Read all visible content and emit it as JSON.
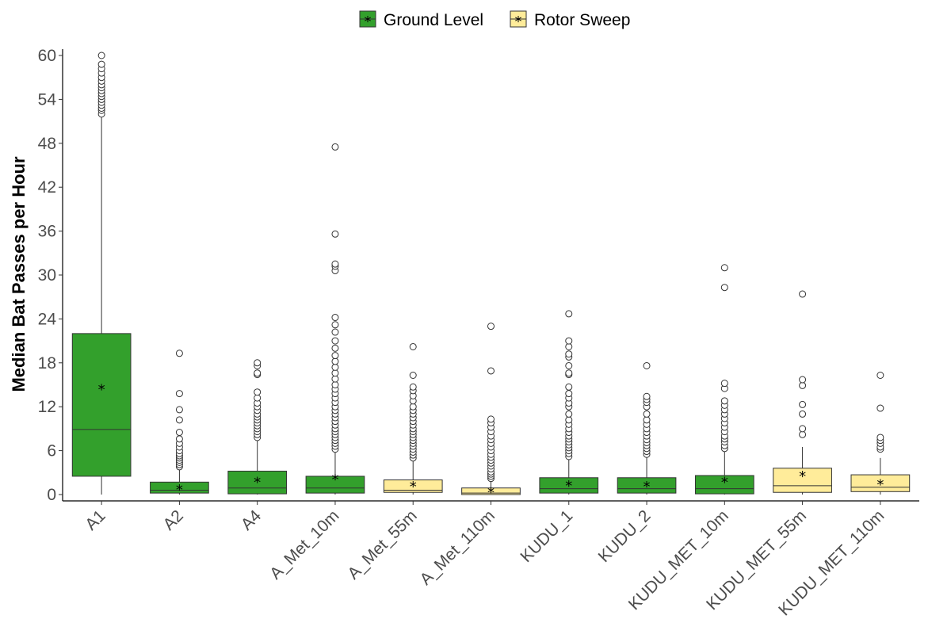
{
  "chart_data": {
    "type": "boxplot",
    "title": "",
    "xlabel": "",
    "ylabel": "Median Bat Passes per Hour",
    "ylim": [
      0,
      61
    ],
    "yticks": [
      0,
      6,
      12,
      18,
      24,
      30,
      36,
      42,
      48,
      54,
      60
    ],
    "grid": false,
    "legend_position": "top",
    "categories": [
      "A1",
      "A2",
      "A4",
      "A_Met_10m",
      "A_Met_55m",
      "A_Met_110m",
      "KUDU_1",
      "KUDU_2",
      "KUDU_MET_10m",
      "KUDU_MET_55m",
      "KUDU_MET_110m"
    ],
    "series": [
      {
        "name": "Ground Level",
        "color": "#33a02c"
      },
      {
        "name": "Rotor Sweep",
        "color": "#ffec9a"
      }
    ],
    "boxes": [
      {
        "category": "A1",
        "series": "Ground Level",
        "min": 0,
        "q1": 2.5,
        "median": 8.9,
        "q3": 22,
        "max": 52,
        "mean": 14.7,
        "outliers": [
          52,
          52.5,
          52.8,
          53.2,
          53.6,
          54,
          54.4,
          54.8,
          55.2,
          55.6,
          56,
          56.5,
          57,
          57.6,
          58.2,
          58.8,
          60
        ]
      },
      {
        "category": "A2",
        "series": "Ground Level",
        "min": 0,
        "q1": 0.2,
        "median": 0.6,
        "q3": 1.7,
        "max": 3.5,
        "mean": 1.0,
        "outliers": [
          3.8,
          4.1,
          4.4,
          4.7,
          5.0,
          5.3,
          5.6,
          6.0,
          6.5,
          7.0,
          7.6,
          8.5,
          10.2,
          11.6,
          13.8,
          19.3
        ]
      },
      {
        "category": "A4",
        "series": "Ground Level",
        "min": 0,
        "q1": 0.1,
        "median": 0.9,
        "q3": 3.2,
        "max": 7.5,
        "mean": 2.0,
        "outliers": [
          7.8,
          8.2,
          8.6,
          9.0,
          9.4,
          9.8,
          10.2,
          10.6,
          11.0,
          11.5,
          12.0,
          12.5,
          13.2,
          14.0,
          16.4,
          16.6,
          17.6,
          18.0
        ]
      },
      {
        "category": "A_Met_10m",
        "series": "Ground Level",
        "min": 0,
        "q1": 0.2,
        "median": 0.9,
        "q3": 2.5,
        "max": 6.0,
        "mean": 2.4,
        "outliers": [
          6.2,
          6.6,
          7.0,
          7.4,
          7.8,
          8.2,
          8.6,
          9.0,
          9.5,
          10.0,
          10.5,
          11.0,
          11.5,
          12.0,
          12.6,
          13.2,
          13.8,
          14.4,
          15.0,
          15.8,
          16.6,
          17.4,
          18.2,
          19.0,
          20.0,
          21.0,
          22.2,
          23.2,
          24.2,
          30.6,
          31.2,
          31.5,
          35.6,
          47.5
        ]
      },
      {
        "category": "A_Met_55m",
        "series": "Rotor Sweep",
        "min": 0,
        "q1": 0.3,
        "median": 0.6,
        "q3": 2.0,
        "max": 4.8,
        "mean": 1.4,
        "outliers": [
          5.0,
          5.4,
          5.8,
          6.2,
          6.6,
          7.0,
          7.4,
          7.8,
          8.2,
          8.6,
          9.0,
          9.5,
          10.0,
          10.5,
          11.0,
          11.5,
          12.0,
          12.8,
          13.5,
          14.2,
          14.7,
          16.3,
          20.2
        ]
      },
      {
        "category": "A_Met_110m",
        "series": "Rotor Sweep",
        "min": 0,
        "q1": 0.0,
        "median": 0.2,
        "q3": 0.9,
        "max": 2.0,
        "mean": 0.6,
        "outliers": [
          2.2,
          2.5,
          2.8,
          3.1,
          3.5,
          3.9,
          4.3,
          4.7,
          5.1,
          5.5,
          6.0,
          6.5,
          7.0,
          7.5,
          8.0,
          8.6,
          9.2,
          9.8,
          10.3,
          16.9,
          23.0
        ]
      },
      {
        "category": "KUDU_1",
        "series": "Ground Level",
        "min": 0,
        "q1": 0.2,
        "median": 0.8,
        "q3": 2.3,
        "max": 5.0,
        "mean": 1.5,
        "outliers": [
          5.2,
          5.6,
          6.0,
          6.4,
          6.8,
          7.2,
          7.6,
          8.0,
          8.5,
          9.0,
          9.6,
          10.2,
          11.0,
          12.0,
          12.5,
          13.2,
          13.8,
          14.7,
          16.4,
          16.6,
          17.6,
          18.8,
          19.2,
          20.2,
          21.0,
          24.7
        ]
      },
      {
        "category": "KUDU_2",
        "series": "Ground Level",
        "min": 0,
        "q1": 0.2,
        "median": 0.8,
        "q3": 2.3,
        "max": 5.2,
        "mean": 1.4,
        "outliers": [
          5.5,
          5.9,
          6.3,
          6.7,
          7.1,
          7.5,
          8.0,
          8.5,
          9.0,
          9.6,
          10.2,
          11.0,
          12.0,
          12.6,
          13.0,
          13.4,
          17.6
        ]
      },
      {
        "category": "KUDU_MET_10m",
        "series": "Ground Level",
        "min": 0,
        "q1": 0.1,
        "median": 0.8,
        "q3": 2.6,
        "max": 6.0,
        "mean": 2.0,
        "outliers": [
          6.3,
          6.7,
          7.2,
          7.6,
          8.0,
          8.6,
          9.2,
          9.8,
          10.4,
          11.0,
          11.6,
          12.2,
          12.8,
          14.5,
          15.2,
          28.3,
          31.0
        ]
      },
      {
        "category": "KUDU_MET_55m",
        "series": "Rotor Sweep",
        "min": 0,
        "q1": 0.3,
        "median": 1.2,
        "q3": 3.6,
        "max": 6.5,
        "mean": 2.8,
        "outliers": [
          8.2,
          9.0,
          11.0,
          12.3,
          14.9,
          15.7,
          27.4
        ]
      },
      {
        "category": "KUDU_MET_110m",
        "series": "Rotor Sweep",
        "min": 0,
        "q1": 0.4,
        "median": 1.0,
        "q3": 2.7,
        "max": 5.0,
        "mean": 1.7,
        "outliers": [
          6.2,
          6.5,
          7.0,
          7.4,
          7.8,
          11.8,
          16.3
        ]
      }
    ]
  }
}
